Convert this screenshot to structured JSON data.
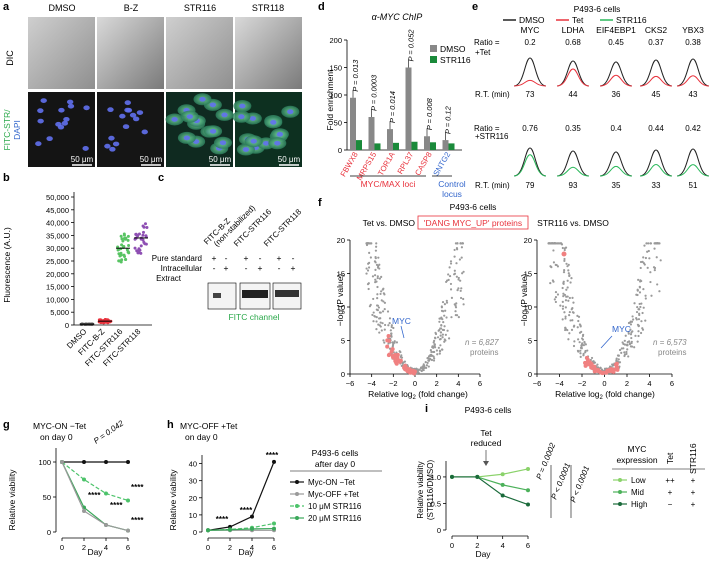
{
  "panels": {
    "a": {
      "letter": "a",
      "conditions": [
        "DMSO",
        "B-Z",
        "STR116",
        "STR118"
      ],
      "row_labels": [
        "DIC",
        "FITC-STR/",
        "DAPI"
      ],
      "scale_bar": "50 μm"
    },
    "b": {
      "letter": "b",
      "ylabel": "Fluorescence (A.U.)",
      "yticks": [
        "0",
        "5,000",
        "10,000",
        "15,000",
        "20,000",
        "25,000",
        "30,000",
        "35,000",
        "40,000",
        "45,000",
        "50,000"
      ],
      "groups": [
        "DMSO",
        "FITC-B-Z",
        "FITC-STR116",
        "FITC-STR118"
      ],
      "colors": [
        "#555555",
        "#e8323c",
        "#58c463",
        "#8e4fb3"
      ]
    },
    "c": {
      "letter": "c",
      "columns": [
        "FITC-B-Z",
        "(non-stabilized)",
        "FITC-STR116",
        "FITC-STR118"
      ],
      "rows": [
        "Pure standard",
        "Intracellular",
        "Extract"
      ],
      "signs": [
        [
          "+",
          "-",
          "+",
          "-",
          "+",
          "-"
        ],
        [
          "-",
          "+",
          "-",
          "+",
          "-",
          "+"
        ]
      ],
      "footer": "FITC channel"
    },
    "d": {
      "letter": "d",
      "title": "α-MYC ChIP",
      "ylabel": "Fold enrichment",
      "yticks": [
        "0",
        "50",
        "100",
        "150",
        "200"
      ],
      "genes": [
        "FBWX8",
        "MRPS15",
        "TOR1A",
        "RPL37",
        "CASP8",
        "SNTG2"
      ],
      "gene_colors": [
        "#e8323c",
        "#e8323c",
        "#e8323c",
        "#e8323c",
        "#e8323c",
        "#3366cc"
      ],
      "pvals": [
        "P = 0.013",
        "P = 0.0003",
        "P = 0.014",
        "P = 0.052",
        "P = 0.008",
        "P = 0.12"
      ],
      "legend": [
        "DMSO",
        "STR116"
      ],
      "loci_label": "MYC/MAX loci",
      "control_label": "Control locus",
      "control_label2": "locus",
      "control_label1": "Control"
    },
    "e": {
      "letter": "e",
      "title": "P493-6 cells",
      "legend": [
        "DMSO",
        "Tet",
        "STR116"
      ],
      "genes": [
        "MYC",
        "LDHA",
        "EIF4EBP1",
        "CKS2",
        "YBX3"
      ],
      "ratio_label": "Ratio =",
      "rt_label": "R.T. (min)",
      "tet": {
        "label": "+Tet",
        "ratios": [
          "0.2",
          "0.68",
          "0.45",
          "0.37",
          "0.38"
        ],
        "rts": [
          "73",
          "44",
          "36",
          "45",
          "43"
        ]
      },
      "str": {
        "label": "+STR116",
        "ratios": [
          "0.76",
          "0.35",
          "0.4",
          "0.44",
          "0.42"
        ],
        "rts": [
          "79",
          "93",
          "35",
          "33",
          "51"
        ]
      }
    },
    "f": {
      "letter": "f",
      "title": "P493-6 cells",
      "subtitle": "'DANG MYC_UP' proteins",
      "left_title": "Tet vs. DMSO",
      "right_title": "STR116 vs. DMSO",
      "ylabel": "−log (P value)",
      "xlabel": "Relative log2 (fold change)",
      "xlabel_main": "Relative log",
      "xlabel_sub": "2",
      "xlabel_tail": " (fold change)",
      "yticks": [
        "0",
        "5",
        "10",
        "15",
        "20"
      ],
      "xticks": [
        "−6",
        "−4",
        "−2",
        "0",
        "2",
        "4",
        "6"
      ],
      "myc": "MYC",
      "left_n": "n = 6,827",
      "right_n": "n = 6,573",
      "proteins": "proteins"
    },
    "g": {
      "letter": "g",
      "title": "MYC-ON −Tet",
      "title2": "on day 0",
      "ylabel": "Relative viability",
      "xlabel": "Day",
      "pval": "P = 0.042",
      "stars": "****",
      "yticks": [
        "0",
        "50",
        "100"
      ],
      "xticks": [
        "0",
        "2",
        "4",
        "6"
      ]
    },
    "h": {
      "letter": "h",
      "title": "MYC-OFF +Tet",
      "title2": "on day 0",
      "ylabel": "Relative viability",
      "xlabel": "Day",
      "stars": "****",
      "yticks": [
        "0",
        "10",
        "20",
        "30",
        "40"
      ],
      "xticks": [
        "0",
        "2",
        "4",
        "6"
      ],
      "legend_title": "P493-6 cells",
      "legend_title2": "after day 0",
      "legend": [
        "Myc-ON −Tet",
        "Myc-OFF +Tet",
        "10 μM STR116",
        "20 μM STR116"
      ]
    },
    "i": {
      "letter": "i",
      "title": "P493-6 cells",
      "annotation": "Tet",
      "annotation2": "reduced",
      "ylabel": "Relative viability",
      "ylabel2": "(STR116/DMSO)",
      "xlabel": "Day",
      "yticks": [
        "0",
        "0.5",
        "1.0"
      ],
      "xticks": [
        "0",
        "2",
        "4",
        "6"
      ],
      "pvals": [
        "P = 0.0002",
        "P < 0.0001",
        "P < 0.0001"
      ],
      "table_header": "MYC",
      "table_header2": "expression",
      "cols": [
        "Tet",
        "STR116"
      ],
      "rows": [
        {
          "name": "Low",
          "tet": "++",
          "str": "+"
        },
        {
          "name": "Mid",
          "tet": "+",
          "str": "+"
        },
        {
          "name": "High",
          "tet": "−",
          "str": "+"
        }
      ]
    }
  },
  "chart_data": [
    {
      "panel": "b",
      "type": "scatter",
      "categories": [
        "DMSO",
        "FITC-B-Z",
        "FITC-STR116",
        "FITC-STR118"
      ],
      "values": [
        300,
        1500,
        30000,
        34000
      ],
      "ylim": [
        0,
        50000
      ],
      "ylabel": "Fluorescence (A.U.)"
    },
    {
      "panel": "d",
      "type": "bar",
      "categories": [
        "FBWX8",
        "MRPS15",
        "TOR1A",
        "RPL37",
        "CASP8",
        "SNTG2"
      ],
      "series": [
        {
          "name": "DMSO",
          "values": [
            95,
            60,
            38,
            150,
            25,
            18
          ]
        },
        {
          "name": "STR116",
          "values": [
            18,
            12,
            13,
            15,
            14,
            12
          ]
        }
      ],
      "ylim": [
        0,
        200
      ],
      "ylabel": "Fold enrichment"
    },
    {
      "panel": "g",
      "type": "line",
      "x": [
        0,
        2,
        4,
        6
      ],
      "series": [
        {
          "name": "Myc-ON −Tet",
          "values": [
            100,
            100,
            100,
            100
          ]
        },
        {
          "name": "10 μM STR116",
          "values": [
            100,
            75,
            55,
            45
          ]
        },
        {
          "name": "20 μM STR116",
          "values": [
            100,
            35,
            10,
            2
          ]
        },
        {
          "name": "Myc-OFF +Tet",
          "values": [
            100,
            30,
            10,
            2
          ]
        }
      ],
      "ylim": [
        0,
        120
      ],
      "xlabel": "Day",
      "ylabel": "Relative viability"
    },
    {
      "panel": "h",
      "type": "line",
      "x": [
        0,
        2,
        4,
        6
      ],
      "series": [
        {
          "name": "Myc-ON −Tet",
          "values": [
            1,
            3,
            9,
            41
          ]
        },
        {
          "name": "Myc-OFF +Tet",
          "values": [
            1,
            1,
            1,
            1
          ]
        },
        {
          "name": "10 μM STR116",
          "values": [
            1,
            1.5,
            2.5,
            5
          ]
        },
        {
          "name": "20 μM STR116",
          "values": [
            1,
            1.3,
            1.8,
            2
          ]
        }
      ],
      "ylim": [
        0,
        45
      ],
      "xlabel": "Day",
      "ylabel": "Relative viability"
    },
    {
      "panel": "i",
      "type": "line",
      "x": [
        0,
        2,
        4,
        6
      ],
      "series": [
        {
          "name": "Low",
          "values": [
            1.0,
            1.0,
            1.05,
            1.15
          ]
        },
        {
          "name": "Mid",
          "values": [
            1.0,
            1.0,
            0.85,
            0.75
          ]
        },
        {
          "name": "High",
          "values": [
            1.0,
            1.0,
            0.65,
            0.48
          ]
        }
      ],
      "ylim": [
        0,
        1.3
      ],
      "xlabel": "Day",
      "ylabel": "Relative viability (STR116/DMSO)"
    }
  ]
}
